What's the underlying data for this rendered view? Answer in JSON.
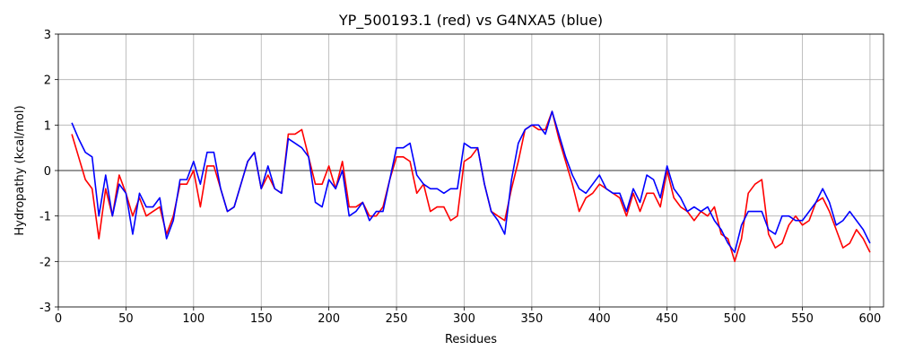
{
  "chart_data": {
    "type": "line",
    "title": "YP_500193.1 (red) vs G4NXA5 (blue)",
    "x_label": "Residues",
    "y_label": "Hydropathy (kcal/mol)",
    "xlim": [
      0,
      610
    ],
    "ylim": [
      -3,
      3
    ],
    "xticks": [
      0,
      50,
      100,
      150,
      200,
      250,
      300,
      350,
      400,
      450,
      500,
      550,
      600
    ],
    "yticks": [
      -3,
      -2,
      -1,
      0,
      1,
      2,
      3
    ],
    "grid": true,
    "hline": 0,
    "x": [
      10,
      15,
      20,
      25,
      30,
      35,
      40,
      45,
      50,
      55,
      60,
      65,
      70,
      75,
      80,
      85,
      90,
      95,
      100,
      105,
      110,
      115,
      120,
      125,
      130,
      135,
      140,
      145,
      150,
      155,
      160,
      165,
      170,
      175,
      180,
      185,
      190,
      195,
      200,
      205,
      210,
      215,
      220,
      225,
      230,
      235,
      240,
      245,
      250,
      255,
      260,
      265,
      270,
      275,
      280,
      285,
      290,
      295,
      300,
      305,
      310,
      315,
      320,
      325,
      330,
      335,
      340,
      345,
      350,
      355,
      360,
      365,
      370,
      375,
      380,
      385,
      390,
      395,
      400,
      405,
      410,
      415,
      420,
      425,
      430,
      435,
      440,
      445,
      450,
      455,
      460,
      465,
      470,
      475,
      480,
      485,
      490,
      495,
      500,
      505,
      510,
      515,
      520,
      525,
      530,
      535,
      540,
      545,
      550,
      555,
      560,
      565,
      570,
      575,
      580,
      585,
      590,
      595,
      600
    ],
    "series": [
      {
        "name": "YP_500193.1",
        "color": "#ff0000",
        "values": [
          0.8,
          0.3,
          -0.2,
          -0.4,
          -1.5,
          -0.4,
          -1.0,
          -0.1,
          -0.5,
          -1.0,
          -0.6,
          -1.0,
          -0.9,
          -0.8,
          -1.4,
          -1.0,
          -0.3,
          -0.3,
          0.0,
          -0.8,
          0.1,
          0.1,
          -0.4,
          -0.9,
          -0.8,
          -0.3,
          0.2,
          0.4,
          -0.4,
          -0.1,
          -0.4,
          -0.5,
          0.8,
          0.8,
          0.9,
          0.3,
          -0.3,
          -0.3,
          0.1,
          -0.4,
          0.2,
          -0.8,
          -0.8,
          -0.7,
          -1.0,
          -1.0,
          -0.8,
          -0.2,
          0.3,
          0.3,
          0.2,
          -0.5,
          -0.3,
          -0.9,
          -0.8,
          -0.8,
          -1.1,
          -1.0,
          0.2,
          0.3,
          0.5,
          -0.3,
          -0.9,
          -1.0,
          -1.1,
          -0.4,
          0.2,
          0.9,
          1.0,
          0.9,
          0.9,
          1.3,
          0.7,
          0.2,
          -0.3,
          -0.9,
          -0.6,
          -0.5,
          -0.3,
          -0.4,
          -0.5,
          -0.6,
          -1.0,
          -0.5,
          -0.9,
          -0.5,
          -0.5,
          -0.8,
          0.0,
          -0.6,
          -0.8,
          -0.9,
          -1.1,
          -0.9,
          -1.0,
          -0.8,
          -1.4,
          -1.5,
          -2.0,
          -1.5,
          -0.5,
          -0.3,
          -0.2,
          -1.4,
          -1.7,
          -1.6,
          -1.2,
          -1.0,
          -1.2,
          -1.1,
          -0.7,
          -0.6,
          -0.9,
          -1.3,
          -1.7,
          -1.6,
          -1.3,
          -1.5,
          -1.8
        ]
      },
      {
        "name": "G4NXA5",
        "color": "#0000ff",
        "values": [
          1.05,
          0.7,
          0.4,
          0.3,
          -1.0,
          -0.1,
          -1.0,
          -0.3,
          -0.5,
          -1.4,
          -0.5,
          -0.8,
          -0.8,
          -0.6,
          -1.5,
          -1.1,
          -0.2,
          -0.2,
          0.2,
          -0.3,
          0.4,
          0.4,
          -0.4,
          -0.9,
          -0.8,
          -0.3,
          0.2,
          0.4,
          -0.4,
          0.1,
          -0.4,
          -0.5,
          0.7,
          0.6,
          0.5,
          0.3,
          -0.7,
          -0.8,
          -0.2,
          -0.4,
          0.0,
          -1.0,
          -0.9,
          -0.7,
          -1.1,
          -0.9,
          -0.9,
          -0.2,
          0.5,
          0.5,
          0.6,
          -0.1,
          -0.3,
          -0.4,
          -0.4,
          -0.5,
          -0.4,
          -0.4,
          0.6,
          0.5,
          0.5,
          -0.3,
          -0.9,
          -1.1,
          -1.4,
          -0.2,
          0.6,
          0.9,
          1.0,
          1.0,
          0.8,
          1.3,
          0.8,
          0.3,
          -0.1,
          -0.4,
          -0.5,
          -0.3,
          -0.1,
          -0.4,
          -0.5,
          -0.5,
          -0.9,
          -0.4,
          -0.7,
          -0.1,
          -0.2,
          -0.6,
          0.1,
          -0.4,
          -0.6,
          -0.9,
          -0.8,
          -0.9,
          -0.8,
          -1.1,
          -1.3,
          -1.6,
          -1.8,
          -1.2,
          -0.9,
          -0.9,
          -0.9,
          -1.3,
          -1.4,
          -1.0,
          -1.0,
          -1.1,
          -1.1,
          -0.9,
          -0.7,
          -0.4,
          -0.7,
          -1.2,
          -1.1,
          -0.9,
          -1.1,
          -1.3,
          -1.6
        ]
      }
    ]
  }
}
